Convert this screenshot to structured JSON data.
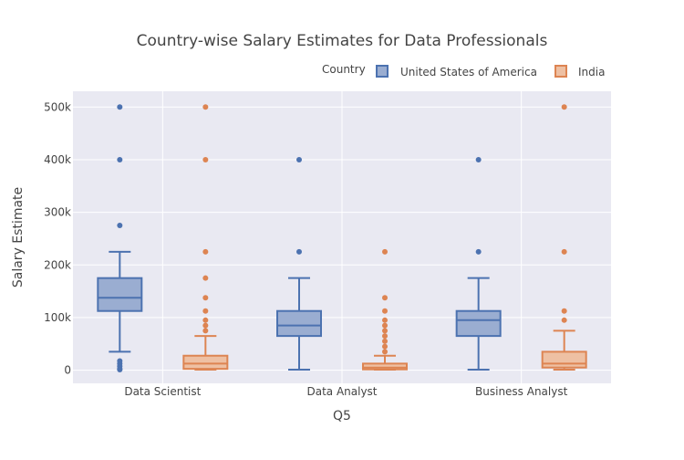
{
  "chart_data": {
    "type": "box",
    "title": "Country-wise Salary Estimates for Data Professionals",
    "xlabel": "Q5",
    "ylabel": "Salary Estimate",
    "categories": [
      "Data Scientist",
      "Data Analyst",
      "Business Analyst"
    ],
    "y_ticks": [
      {
        "value": 0,
        "label": "0"
      },
      {
        "value": 100000,
        "label": "100k"
      },
      {
        "value": 200000,
        "label": "200k"
      },
      {
        "value": 300000,
        "label": "300k"
      },
      {
        "value": 400000,
        "label": "400k"
      },
      {
        "value": 500000,
        "label": "500k"
      }
    ],
    "ylim": [
      -25000,
      530000
    ],
    "grid": true,
    "legend": {
      "title": "Country",
      "position": "top-right",
      "orientation": "horizontal"
    },
    "series": [
      {
        "name": "United States of America",
        "color": "#4c72b0",
        "fill": "#9aadd1",
        "boxes": [
          {
            "category": "Data Scientist",
            "min": 35000,
            "q1": 112500,
            "median": 137500,
            "q3": 175000,
            "max": 225000,
            "outliers": [
              500000,
              400000,
              275000,
              17500,
              12500,
              7500,
              2500,
              1000
            ]
          },
          {
            "category": "Data Analyst",
            "min": 1000,
            "q1": 65000,
            "median": 85000,
            "q3": 112500,
            "max": 175000,
            "outliers": [
              400000,
              225000
            ]
          },
          {
            "category": "Business Analyst",
            "min": 1000,
            "q1": 65000,
            "median": 95000,
            "q3": 112500,
            "max": 175000,
            "outliers": [
              400000,
              225000
            ]
          }
        ]
      },
      {
        "name": "India",
        "color": "#dd8452",
        "fill": "#eec0a3",
        "boxes": [
          {
            "category": "Data Scientist",
            "min": 1000,
            "q1": 2500,
            "median": 12500,
            "q3": 27500,
            "max": 65000,
            "outliers": [
              500000,
              400000,
              225000,
              175000,
              137500,
              112500,
              95000,
              85000,
              75000
            ]
          },
          {
            "category": "Data Analyst",
            "min": 1000,
            "q1": 1500,
            "median": 5000,
            "q3": 12500,
            "max": 27500,
            "outliers": [
              225000,
              137500,
              112500,
              95000,
              85000,
              75000,
              65000,
              55000,
              45000,
              35000
            ]
          },
          {
            "category": "Business Analyst",
            "min": 1000,
            "q1": 5000,
            "median": 12500,
            "q3": 35000,
            "max": 75000,
            "outliers": [
              500000,
              225000,
              112500,
              95000
            ]
          }
        ]
      }
    ]
  }
}
